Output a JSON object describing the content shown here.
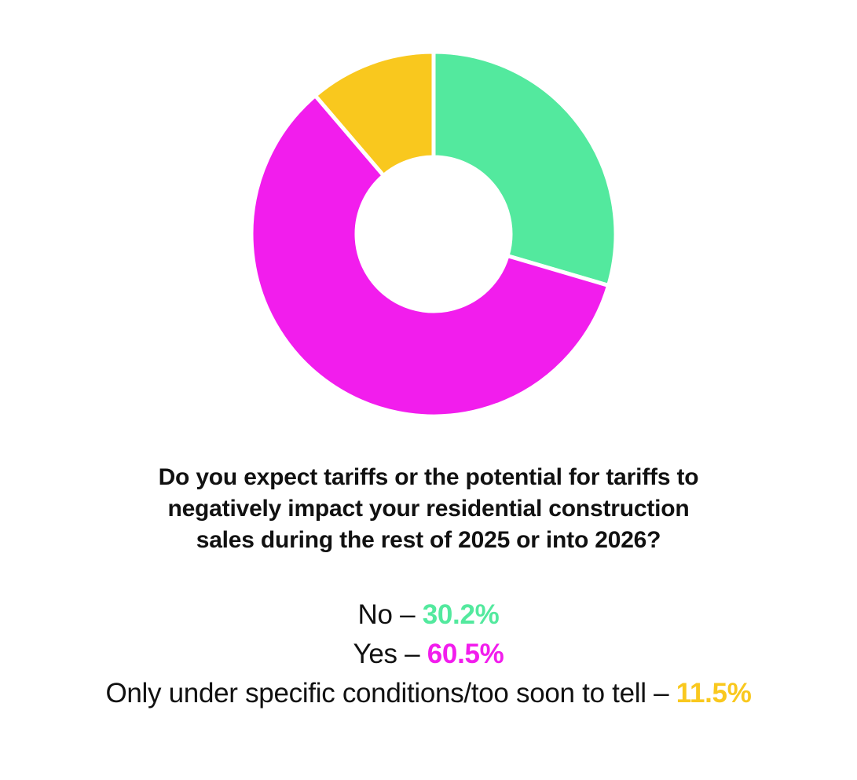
{
  "chart_data": {
    "type": "pie",
    "variant": "donut",
    "title_lines": [
      "Do you expect tariffs or the potential for tariffs to",
      "negatively impact your residential construction",
      "sales during the rest of 2025 or into 2026?"
    ],
    "slices": [
      {
        "label": "No",
        "value": 30.2,
        "display": "30.2%",
        "color": "#53e99e"
      },
      {
        "label": "Yes",
        "value": 60.5,
        "display": "60.5%",
        "color": "#f21ded"
      },
      {
        "label": "Only under specific conditions/too soon to tell",
        "value": 11.5,
        "display": "11.5%",
        "color": "#f9c81e"
      }
    ],
    "separator": " – "
  }
}
